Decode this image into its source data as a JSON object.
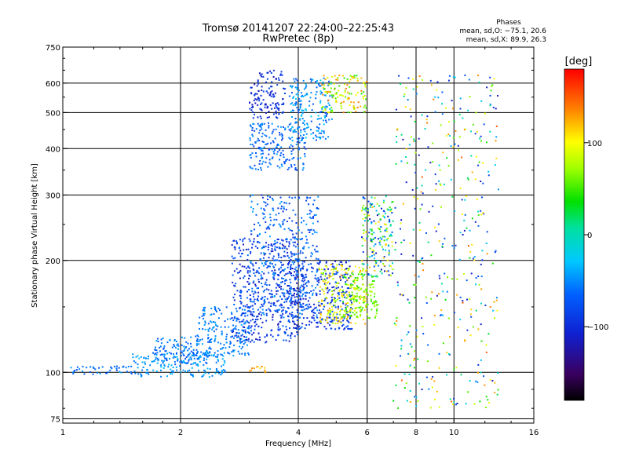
{
  "chart_data": {
    "type": "scatter",
    "title": "Tromsø 20141207 22:24:00–22:25:43",
    "subtitle": "RwPretec (8p)",
    "xlabel": "Frequency [MHz]",
    "ylabel": "Stationary phase Virtual Height [km]",
    "xscale": "log",
    "yscale": "log",
    "xlim": [
      1,
      16
    ],
    "ylim": [
      73,
      750
    ],
    "x_ticks": [
      "1",
      "2",
      "4",
      "6",
      "8",
      "10",
      "16"
    ],
    "y_ticks": [
      "75",
      "100",
      "200",
      "300",
      "400",
      "500",
      "600",
      "750"
    ],
    "grid": true,
    "phase_stats": {
      "heading": "Phases",
      "line_o": "mean, sd,O: −75.1, 20.6",
      "line_x": "mean, sd,X:  89.9, 26.3"
    },
    "colorbar": {
      "label": "[deg]",
      "range": [
        -180,
        180
      ],
      "ticks": [
        "100",
        "0",
        "−100"
      ],
      "tick_values": [
        100,
        0,
        -100
      ],
      "colormap": "rainbow"
    },
    "point_clusters": [
      {
        "x": [
          1.05,
          1.5
        ],
        "y": [
          98,
          104
        ],
        "phase": [
          -80,
          -40
        ]
      },
      {
        "x": [
          1.5,
          2.6
        ],
        "y": [
          97,
          112
        ],
        "phase": [
          -60,
          -30
        ]
      },
      {
        "x": [
          1.7,
          2.4
        ],
        "y": [
          105,
          125
        ],
        "phase": [
          -80,
          -40
        ]
      },
      {
        "x": [
          2.2,
          3.0
        ],
        "y": [
          110,
          150
        ],
        "phase": [
          -70,
          -40
        ]
      },
      {
        "x": [
          2.7,
          4.0
        ],
        "y": [
          120,
          230
        ],
        "phase": [
          -120,
          -60
        ]
      },
      {
        "x": [
          3.0,
          4.5
        ],
        "y": [
          140,
          300
        ],
        "phase": [
          -100,
          -40
        ]
      },
      {
        "x": [
          3.8,
          5.5
        ],
        "y": [
          130,
          200
        ],
        "phase": [
          -120,
          -60
        ]
      },
      {
        "x": [
          4.5,
          6.0
        ],
        "y": [
          135,
          195
        ],
        "phase": [
          60,
          130
        ]
      },
      {
        "x": [
          5.2,
          6.4
        ],
        "y": [
          140,
          185
        ],
        "phase": [
          40,
          80
        ]
      },
      {
        "x": [
          3.0,
          3.3
        ],
        "y": [
          100,
          104
        ],
        "phase": [
          110,
          140
        ]
      },
      {
        "x": [
          3.0,
          3.7
        ],
        "y": [
          480,
          650
        ],
        "phase": [
          -120,
          -80
        ]
      },
      {
        "x": [
          3.0,
          4.2
        ],
        "y": [
          350,
          470
        ],
        "phase": [
          -90,
          -40
        ]
      },
      {
        "x": [
          3.8,
          4.9
        ],
        "y": [
          420,
          620
        ],
        "phase": [
          -80,
          -20
        ]
      },
      {
        "x": [
          4.6,
          6.0
        ],
        "y": [
          500,
          630
        ],
        "phase": [
          40,
          140
        ]
      },
      {
        "x": [
          5.8,
          7.0
        ],
        "y": [
          180,
          300
        ],
        "phase": [
          -120,
          120
        ]
      },
      {
        "x": [
          7.0,
          13.0
        ],
        "y": [
          80,
          630
        ],
        "phase": [
          -120,
          150
        ]
      }
    ]
  }
}
